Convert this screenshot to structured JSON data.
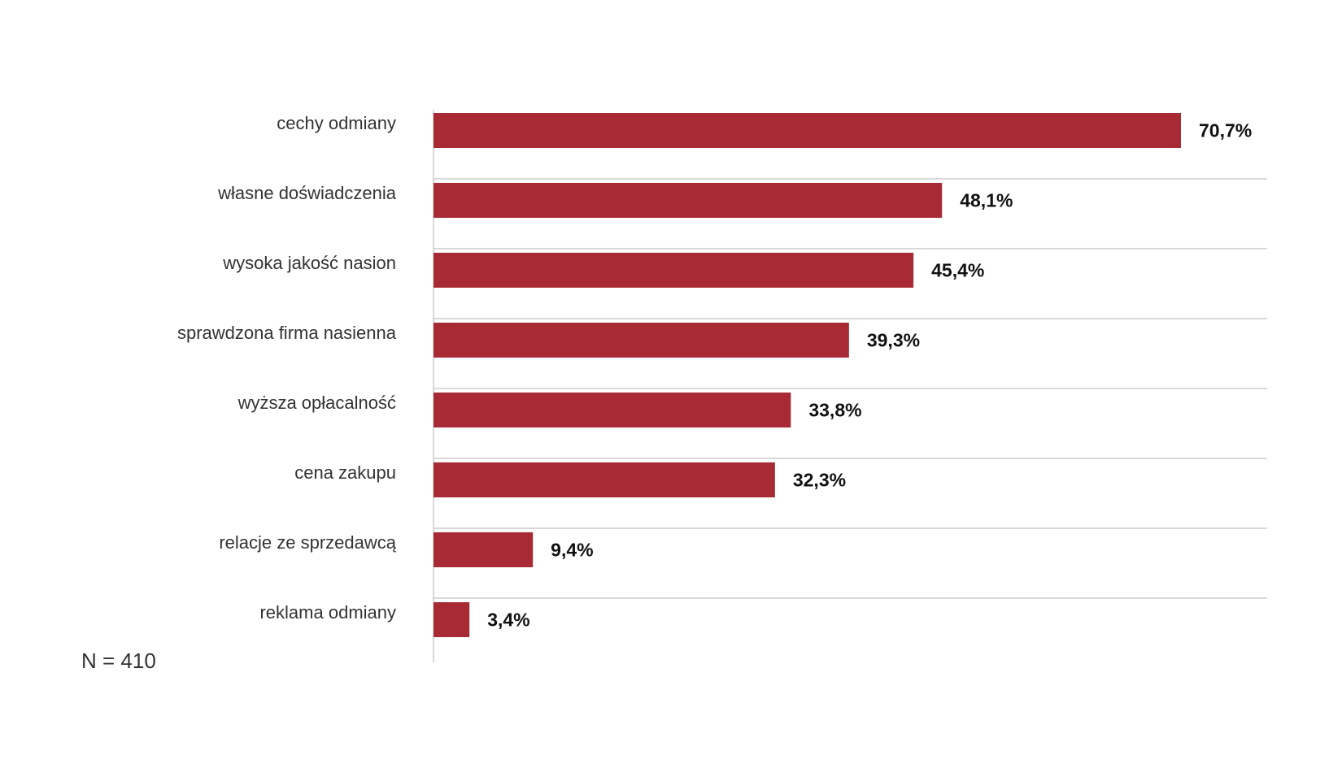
{
  "chart_data": {
    "type": "bar",
    "orientation": "horizontal",
    "categories": [
      "cechy odmiany",
      "własne doświadczenia",
      "wysoka jakość nasion",
      "sprawdzona firma nasienna",
      "wyższa opłacalność",
      "cena zakupu",
      "relacje ze sprzedawcą",
      "reklama odmiany"
    ],
    "values": [
      70.7,
      48.1,
      45.4,
      39.3,
      33.8,
      32.3,
      9.4,
      3.4
    ],
    "value_labels": [
      "70,7%",
      "48,1%",
      "45,4%",
      "39,3%",
      "33,8%",
      "32,3%",
      "9,4%",
      "3,4%"
    ],
    "xlim": [
      0,
      78
    ],
    "grid": true,
    "bar_color": "#a82a35",
    "grid_color": "#cccccc"
  },
  "note": "N = 410"
}
